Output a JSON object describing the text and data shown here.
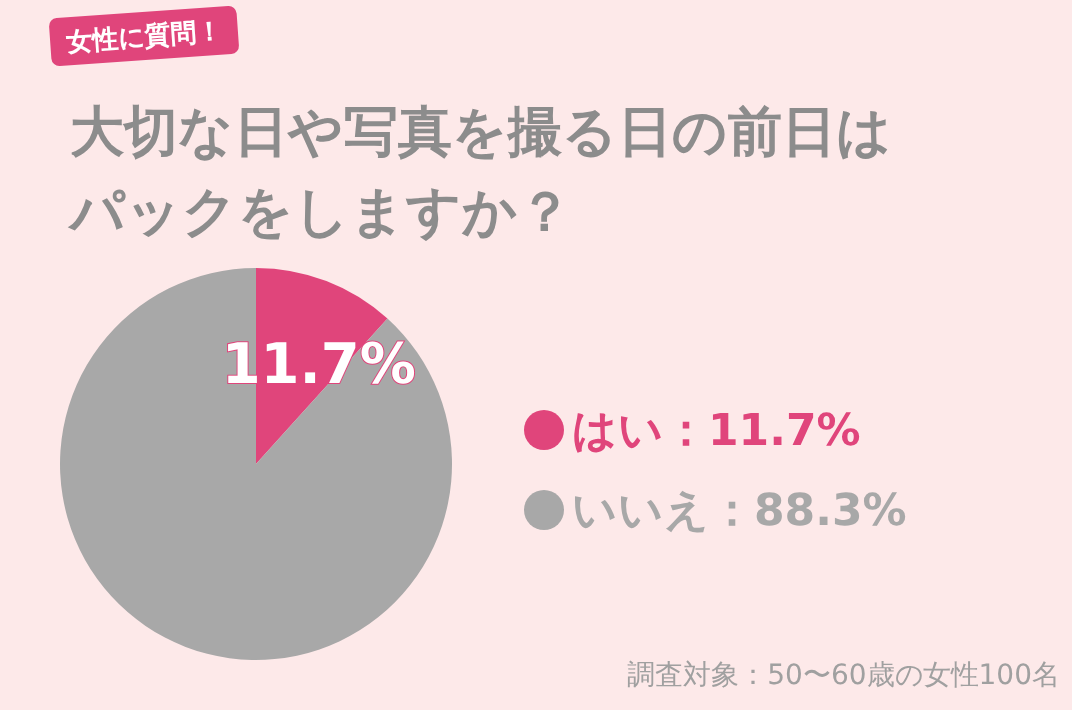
{
  "chart_data": {
    "type": "pie",
    "title": "大切な日や写真を撮る日の前日はパックをしますか？",
    "subtitle": "女性に質問！",
    "categories": [
      "はい：11.7%",
      "いいえ：88.3%"
    ],
    "values": [
      11.7,
      88.3
    ],
    "colors": [
      "#e0457b",
      "#a8a8a8"
    ],
    "value_labels": [
      "11.7%",
      null
    ],
    "legend": "right",
    "annotations": [
      "調査対象：50〜60歳の女性100名"
    ]
  }
}
